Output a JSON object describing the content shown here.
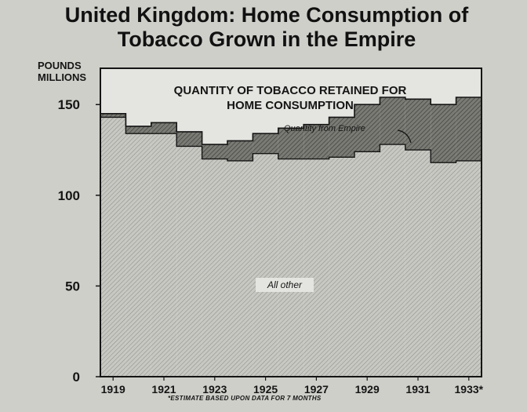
{
  "title": {
    "line1": "United Kingdom: Home Consumption of",
    "line2": "Tobacco Grown in the Empire"
  },
  "y_unit": {
    "line1": "POUNDS",
    "line2": "MILLIONS"
  },
  "footnote": "*ESTIMATE BASED UPON DATA FOR 7 MONTHS",
  "colors": {
    "background": "#cfcfca",
    "plot_background": "#e4e4e0",
    "all_other_fill": "#c8c8c3",
    "empire_fill": "#7b7b76",
    "ink": "#151515"
  },
  "chart_data": {
    "type": "area",
    "title": "QUANTITY OF TOBACCO RETAINED FOR HOME CONSUMPTION",
    "xlabel": "",
    "ylabel": "POUNDS MILLIONS",
    "ylim": [
      0,
      170
    ],
    "y_ticks": [
      0,
      50,
      100,
      150
    ],
    "x_tick_labels": [
      "1919",
      "1921",
      "1923",
      "1925",
      "1927",
      "1929",
      "1931",
      "1933*"
    ],
    "x": [
      1919,
      1920,
      1921,
      1922,
      1923,
      1924,
      1925,
      1926,
      1927,
      1928,
      1929,
      1930,
      1931,
      1932,
      1933
    ],
    "stacked": true,
    "step": true,
    "series": [
      {
        "name": "All other",
        "values": [
          143,
          134,
          134,
          127,
          120,
          119,
          123,
          120,
          120,
          121,
          124,
          128,
          125,
          118,
          119
        ]
      },
      {
        "name": "Quantity from Empire",
        "values": [
          2,
          4,
          6,
          8,
          8,
          11,
          11,
          17,
          19,
          22,
          26,
          26,
          28,
          32,
          35
        ]
      }
    ],
    "legend": "annotations inside plot",
    "grid": false
  }
}
